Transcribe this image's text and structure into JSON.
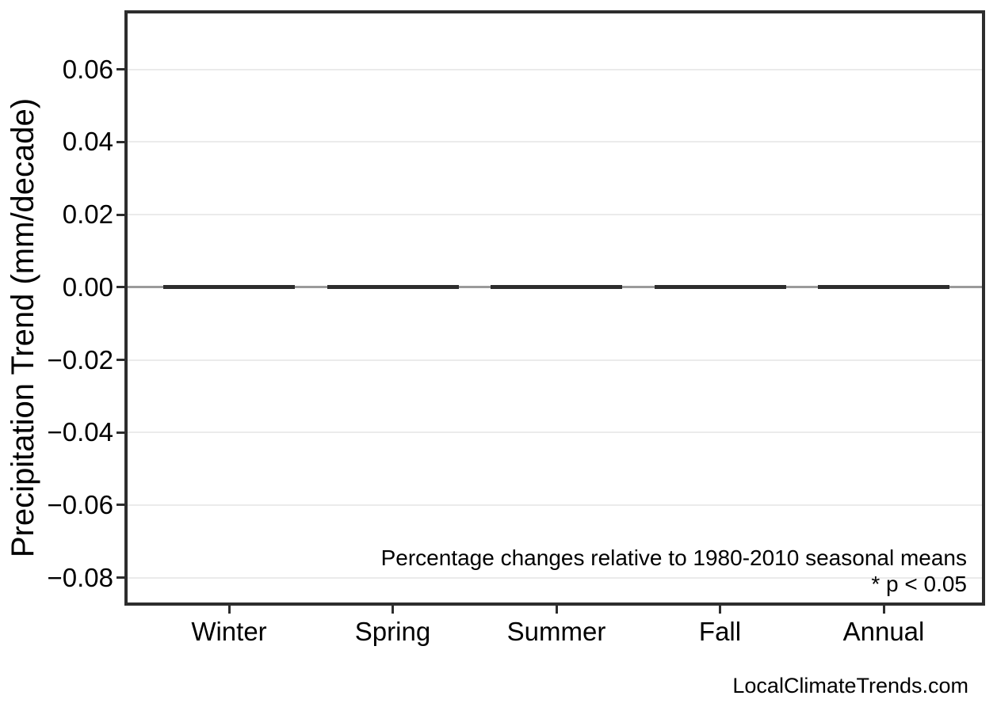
{
  "chart_data": {
    "type": "bar",
    "title": "",
    "categories": [
      "Winter",
      "Spring",
      "Summer",
      "Fall",
      "Annual"
    ],
    "values": [
      0.0,
      0.0,
      0.0,
      0.0,
      0.0
    ],
    "xlabel": "",
    "ylabel": "Precipitation Trend (mm/decade)",
    "ytick_values": [
      0.06,
      0.04,
      0.02,
      0.0,
      -0.02,
      -0.04,
      -0.06,
      -0.08
    ],
    "ytick_labels": [
      "0.06",
      "0.04",
      "0.02",
      "0.00",
      "−0.02",
      "−0.04",
      "−0.06",
      "−0.08"
    ],
    "ylim": [
      -0.0877,
      0.0763
    ],
    "grid": "horizontal-major",
    "legend": "none",
    "zero_line_value": 0,
    "annotations": {
      "note": "Percentage changes relative to 1980-2010 seasonal means",
      "significance": "* p < 0.05"
    }
  },
  "footer": {
    "watermark": "LocalClimateTrends.com"
  },
  "colors": {
    "background": "#ffffff",
    "frame": "#2d2d2d",
    "grid": "#ebebeb",
    "zero_line": "#9a9a9a",
    "bar": "#2d2d2d",
    "text": "#000000"
  }
}
